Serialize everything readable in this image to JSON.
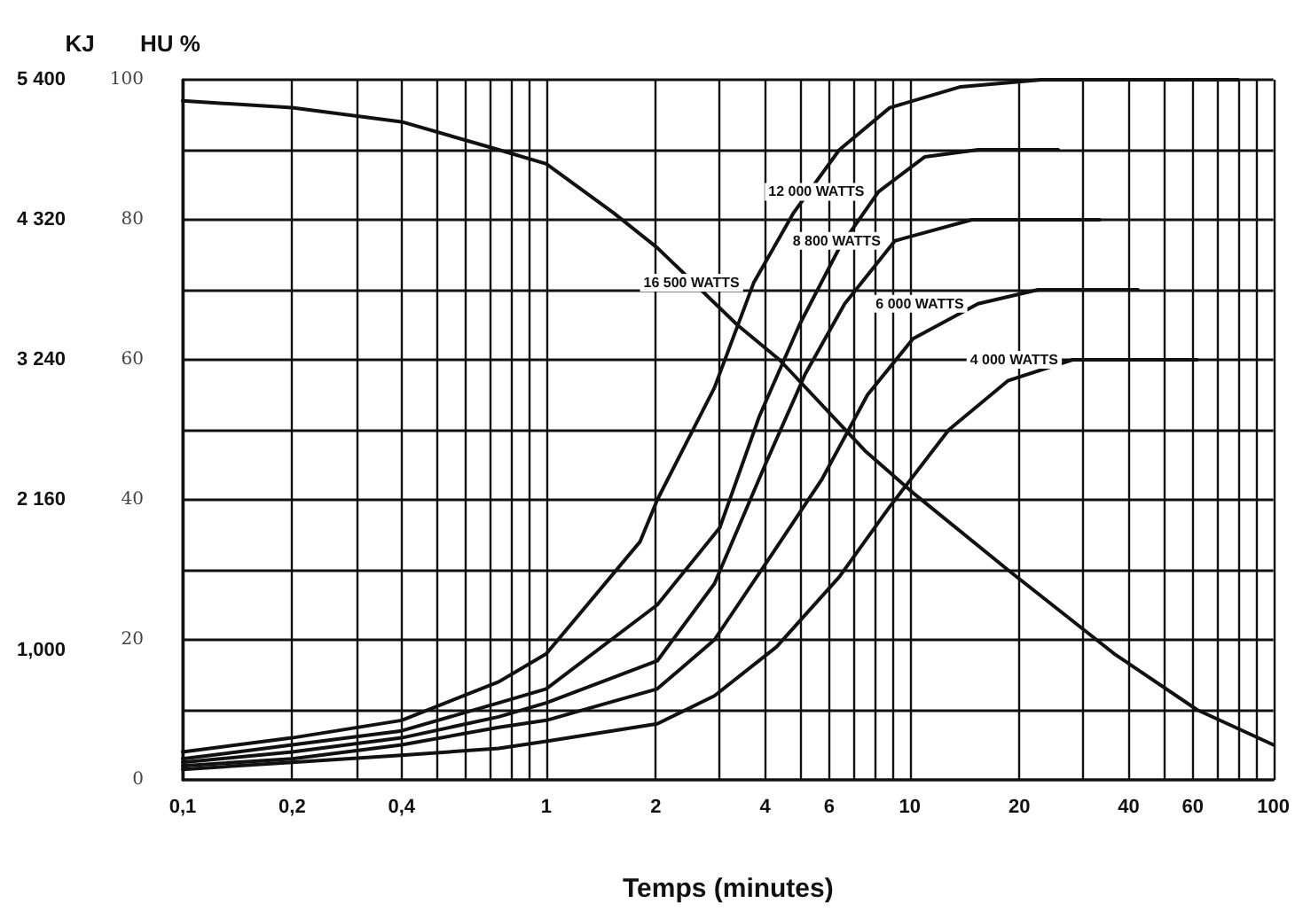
{
  "chart_data": {
    "type": "line",
    "xlabel": "Temps (minutes)",
    "ylabel": "HU %",
    "y2label": "KJ",
    "log": "x",
    "grid": true,
    "legend": false,
    "marker": "none",
    "line_style": "solid",
    "xlim": [
      0.1,
      100
    ],
    "xticks": [
      {
        "value": 0.1,
        "label": "0,1"
      },
      {
        "value": 0.2,
        "label": "0,2"
      },
      {
        "value": 0.3,
        "label": null
      },
      {
        "value": 0.4,
        "label": "0,4"
      },
      {
        "value": 0.5,
        "label": null
      },
      {
        "value": 0.6,
        "label": null
      },
      {
        "value": 0.7,
        "label": null
      },
      {
        "value": 0.8,
        "label": null
      },
      {
        "value": 0.9,
        "label": null
      },
      1,
      2,
      {
        "value": 3,
        "label": null
      },
      4,
      {
        "value": 5,
        "label": null
      },
      6,
      {
        "value": 7,
        "label": null
      },
      {
        "value": 8,
        "label": null
      },
      {
        "value": 9,
        "label": null
      },
      10,
      20,
      {
        "value": 30,
        "label": null
      },
      40,
      {
        "value": 50,
        "label": null
      },
      60,
      {
        "value": 70,
        "label": null
      },
      {
        "value": 80,
        "label": null
      },
      {
        "value": 90,
        "label": null
      },
      100
    ],
    "ylim": [
      0,
      100
    ],
    "yticks": [
      0,
      {
        "value": 10,
        "label": null
      },
      20,
      {
        "value": 30,
        "label": null
      },
      40,
      {
        "value": 50,
        "label": null
      },
      60,
      {
        "value": 70,
        "label": null
      },
      80,
      {
        "value": 90,
        "label": null
      },
      100
    ],
    "y2lim": [
      0,
      5400
    ],
    "y2ticks": [
      {
        "value": 1000,
        "label": "1,000"
      },
      {
        "value": 2160,
        "label": "2 160"
      },
      {
        "value": 3240,
        "label": "3 240"
      },
      {
        "value": 4320,
        "label": "4 320"
      },
      {
        "value": 5400,
        "label": "5 400"
      }
    ],
    "series": [
      {
        "color": "#111111",
        "x": [
          0.1,
          0.2,
          0.4,
          0.74,
          1,
          1.53,
          2.02,
          3.35,
          4.38,
          7.53,
          10.2,
          18.6,
          36.5,
          61.7,
          100
        ],
        "values": [
          97,
          96,
          94,
          90,
          88,
          81,
          76,
          65,
          60,
          47,
          41,
          30,
          18,
          10,
          5
        ]
      },
      {
        "name": "16 500 WATTS",
        "color": "#111111",
        "x": [
          0.1,
          0.2,
          0.4,
          0.74,
          1,
          1.81,
          2.02,
          2.9,
          3.72,
          4.79,
          6.4,
          8.8,
          13.8,
          23,
          40,
          80
        ],
        "values": [
          4,
          6,
          8.5,
          14,
          18,
          34,
          40,
          56,
          71,
          81,
          90,
          96,
          99,
          100,
          100,
          100
        ]
      },
      {
        "name": "12 000 WATTS",
        "color": "#111111",
        "x": [
          0.1,
          0.2,
          0.4,
          0.74,
          1,
          2.02,
          3,
          3.86,
          4.97,
          6.4,
          8.2,
          11,
          15.4,
          25.6
        ],
        "values": [
          3,
          5,
          7,
          11,
          13,
          25,
          36,
          52,
          65,
          76,
          84,
          89,
          90,
          90
        ]
      },
      {
        "name": "8 800 WATTS",
        "color": "#111111",
        "x": [
          0.1,
          0.2,
          0.4,
          0.74,
          1,
          2.02,
          2.9,
          4,
          5.16,
          6.62,
          9.1,
          14.8,
          33.3
        ],
        "values": [
          2.5,
          4,
          6,
          9,
          11,
          17,
          28,
          45,
          58,
          68,
          77,
          80,
          80
        ]
      },
      {
        "name": "6 000 WATTS",
        "color": "#111111",
        "x": [
          0.1,
          0.2,
          0.4,
          0.74,
          1,
          2.02,
          2.9,
          4.15,
          5.74,
          7.65,
          10.2,
          15.4,
          22.5,
          42.4
        ],
        "values": [
          2,
          3,
          5,
          7.5,
          8.5,
          13,
          20,
          32,
          43,
          55,
          63,
          68,
          70,
          70
        ]
      },
      {
        "name": "4 000 WATTS",
        "color": "#111111",
        "x": [
          0.1,
          0.2,
          0.4,
          0.74,
          1,
          2.02,
          2.9,
          4.3,
          6.4,
          8.8,
          12.8,
          18.6,
          28,
          61.7
        ],
        "values": [
          1.5,
          2.5,
          3.5,
          4.5,
          5.5,
          8,
          12,
          19,
          29,
          39,
          50,
          57,
          60,
          60
        ]
      }
    ]
  }
}
